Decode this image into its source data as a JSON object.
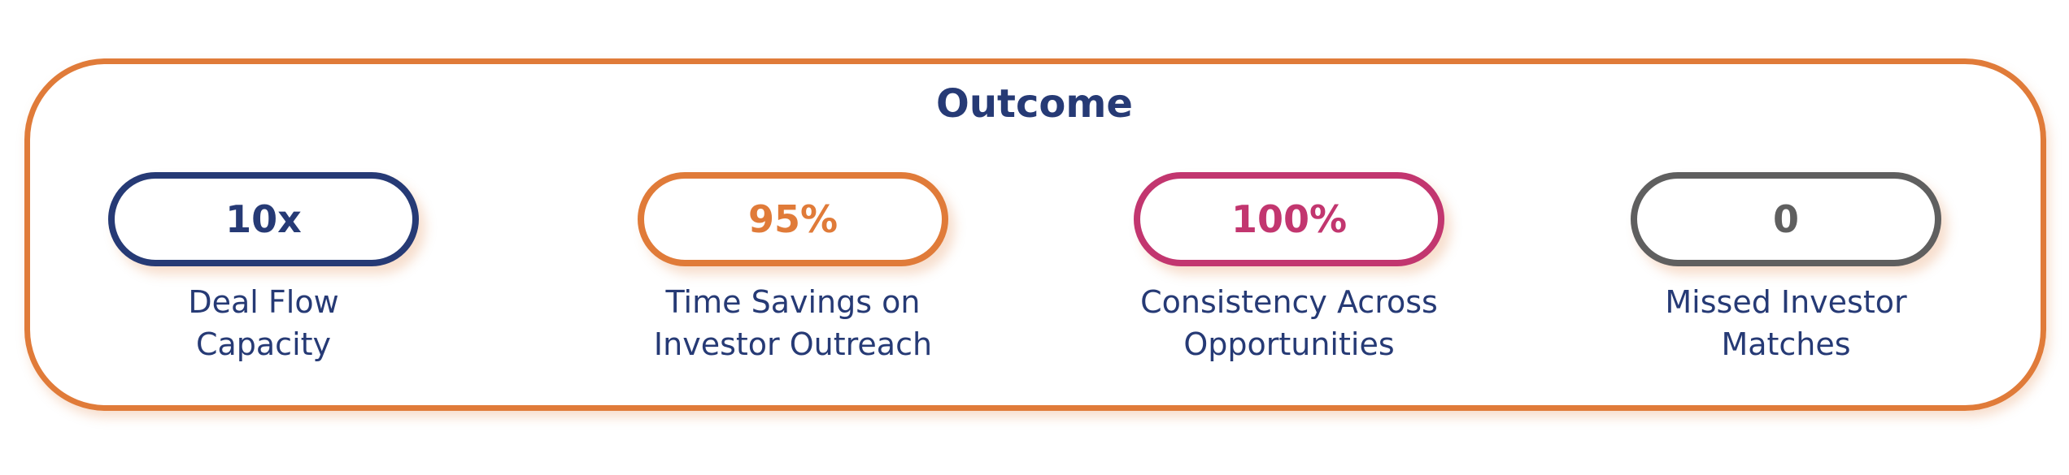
{
  "title": "Outcome",
  "colors": {
    "frame": "#E07B39",
    "title": "#263A75"
  },
  "metrics": [
    {
      "value": "10x",
      "label_line1": "Deal Flow",
      "label_line2": "Capacity",
      "color": "#263A75"
    },
    {
      "value": "95%",
      "label_line1": "Time Savings on",
      "label_line2": "Investor Outreach",
      "color": "#E07B39"
    },
    {
      "value": "100%",
      "label_line1": "Consistency Across",
      "label_line2": "Opportunities",
      "color": "#C2366F"
    },
    {
      "value": "0",
      "label_line1": "Missed Investor",
      "label_line2": "Matches",
      "color": "#5F5F5F"
    }
  ]
}
